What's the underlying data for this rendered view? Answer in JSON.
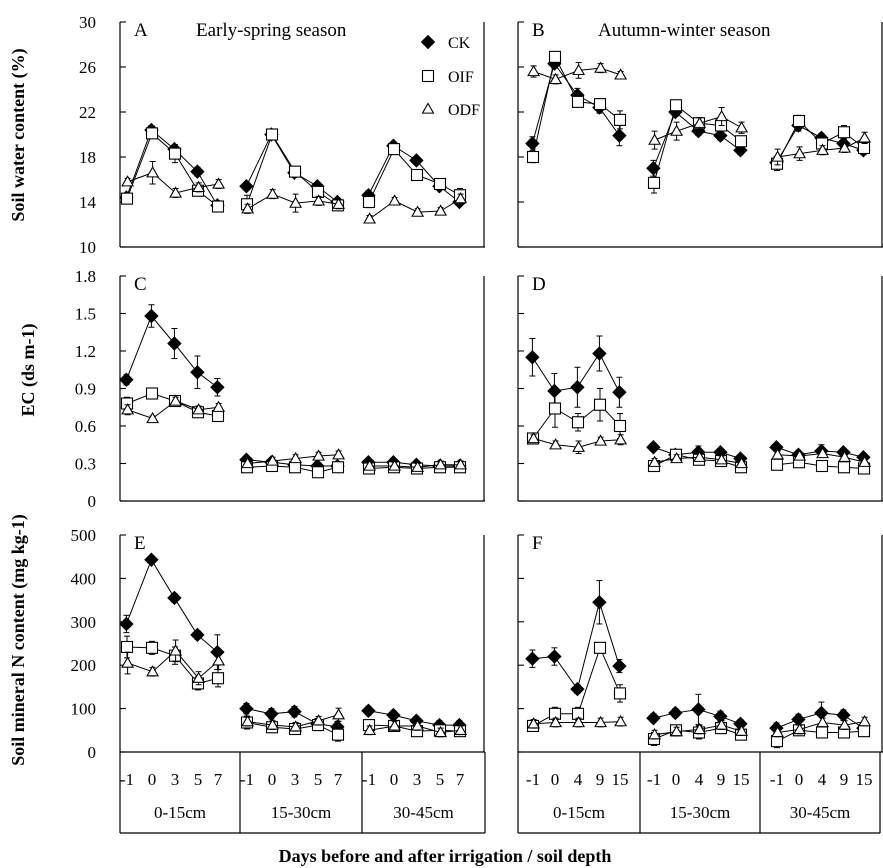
{
  "figure": {
    "xlabel": "Days before and after irrigation / soil depth",
    "left_days": [
      "-1",
      "0",
      "3",
      "5",
      "7"
    ],
    "right_days": [
      "-1",
      "0",
      "4",
      "9",
      "15"
    ],
    "depths": [
      "0-15cm",
      "15-30cm",
      "30-45cm"
    ],
    "row_ylabels": [
      "Soil water content (%)",
      "EC (ds m-1)",
      "Soil mineral N content (mg kg-1)"
    ],
    "legend": [
      "CK",
      "OIF",
      "ODF"
    ],
    "series_markers": {
      "CK": "filled-diamond",
      "OIF": "open-square",
      "ODF": "open-triangle"
    }
  },
  "chart_data": [
    {
      "panel": "A",
      "title": "Early-spring season",
      "type": "line",
      "ylim": [
        10,
        30
      ],
      "yticks": [
        10,
        14,
        18,
        22,
        26,
        30
      ],
      "groups": [
        "0-15cm",
        "15-30cm",
        "30-45cm"
      ],
      "x": [
        "-1",
        "0",
        "3",
        "5",
        "7"
      ],
      "series": [
        {
          "name": "CK",
          "values": [
            [
              14.4,
              20.4,
              18.7,
              16.7,
              13.7
            ],
            [
              15.4,
              20.0,
              16.6,
              15.4,
              14.0
            ],
            [
              14.6,
              19.0,
              17.7,
              15.4,
              14.0
            ]
          ],
          "err": [
            [
              0.4,
              0.4,
              0.3,
              0.4,
              0.4
            ],
            [
              0.3,
              0.3,
              0.3,
              0.3,
              0.3
            ],
            [
              0.4,
              0.3,
              0.3,
              0.3,
              0.3
            ]
          ]
        },
        {
          "name": "OIF",
          "values": [
            [
              14.3,
              20.1,
              18.3,
              15.0,
              13.6
            ],
            [
              13.8,
              20.0,
              16.7,
              14.9,
              13.7
            ],
            [
              14.0,
              18.7,
              16.4,
              15.6,
              14.6
            ]
          ],
          "err": [
            [
              0.3,
              0.4,
              0.8,
              0.4,
              0.4
            ],
            [
              0.8,
              0.3,
              0.4,
              0.4,
              0.4
            ],
            [
              0.5,
              0.3,
              0.4,
              0.4,
              0.6
            ]
          ]
        },
        {
          "name": "ODF",
          "values": [
            [
              15.8,
              16.6,
              14.8,
              15.3,
              15.6
            ],
            [
              13.4,
              14.7,
              13.9,
              14.1,
              13.8
            ],
            [
              12.5,
              14.1,
              13.1,
              13.2,
              14.3
            ]
          ],
          "err": [
            [
              0.3,
              1.0,
              0.4,
              0.4,
              0.4
            ],
            [
              0.4,
              0.4,
              0.8,
              0.4,
              0.4
            ],
            [
              0.3,
              0.3,
              0.3,
              0.3,
              0.4
            ]
          ]
        }
      ]
    },
    {
      "panel": "B",
      "title": "Autumn-winter season",
      "type": "line",
      "ylim": [
        10,
        30
      ],
      "yticks": [
        10,
        14,
        18,
        22,
        26,
        30
      ],
      "groups": [
        "0-15cm",
        "15-30cm",
        "30-45cm"
      ],
      "x": [
        "-1",
        "0",
        "4",
        "9",
        "15"
      ],
      "series": [
        {
          "name": "CK",
          "values": [
            [
              19.2,
              26.3,
              23.5,
              22.4,
              19.9
            ],
            [
              17.0,
              22.0,
              20.3,
              19.9,
              18.6
            ],
            [
              17.5,
              20.8,
              19.7,
              19.2,
              18.6
            ]
          ],
          "err": [
            [
              0.6,
              0.4,
              0.6,
              0.5,
              0.9
            ],
            [
              0.7,
              0.4,
              0.4,
              0.4,
              0.4
            ],
            [
              0.5,
              0.5,
              0.4,
              0.4,
              0.4
            ]
          ]
        },
        {
          "name": "OIF",
          "values": [
            [
              18.0,
              26.9,
              22.9,
              22.7,
              21.3
            ],
            [
              15.7,
              22.6,
              21.0,
              20.8,
              19.4
            ],
            [
              17.4,
              21.2,
              19.2,
              20.2,
              18.8
            ]
          ],
          "err": [
            [
              0.5,
              0.4,
              0.4,
              0.4,
              0.8
            ],
            [
              0.9,
              0.4,
              0.5,
              0.8,
              0.4
            ],
            [
              0.6,
              0.5,
              0.5,
              0.6,
              0.4
            ]
          ]
        },
        {
          "name": "ODF",
          "values": [
            [
              25.6,
              24.9,
              25.7,
              25.9,
              25.3
            ],
            [
              19.5,
              20.3,
              21.0,
              21.6,
              20.6
            ],
            [
              18.0,
              18.3,
              18.6,
              18.8,
              19.7
            ]
          ],
          "err": [
            [
              0.5,
              0.4,
              0.7,
              0.4,
              0.3
            ],
            [
              0.8,
              0.8,
              0.5,
              0.8,
              0.5
            ],
            [
              0.7,
              0.6,
              0.4,
              0.4,
              0.5
            ]
          ]
        }
      ]
    },
    {
      "panel": "C",
      "type": "line",
      "ylim": [
        0,
        1.8
      ],
      "yticks": [
        0,
        0.3,
        0.6,
        0.9,
        1.2,
        1.5,
        1.8
      ],
      "groups": [
        "0-15cm",
        "15-30cm",
        "30-45cm"
      ],
      "x": [
        "-1",
        "0",
        "3",
        "5",
        "7"
      ],
      "series": [
        {
          "name": "CK",
          "values": [
            [
              0.97,
              1.48,
              1.26,
              1.03,
              0.91
            ],
            [
              0.33,
              0.31,
              0.29,
              0.28,
              0.28
            ],
            [
              0.31,
              0.31,
              0.29,
              0.28,
              0.28
            ]
          ],
          "err": [
            [
              0.04,
              0.09,
              0.12,
              0.13,
              0.07
            ],
            [
              0.03,
              0.03,
              0.03,
              0.03,
              0.03
            ],
            [
              0.03,
              0.03,
              0.03,
              0.03,
              0.03
            ]
          ]
        },
        {
          "name": "OIF",
          "values": [
            [
              0.78,
              0.86,
              0.8,
              0.71,
              0.68
            ],
            [
              0.27,
              0.28,
              0.27,
              0.23,
              0.27
            ],
            [
              0.26,
              0.27,
              0.26,
              0.27,
              0.27
            ]
          ],
          "err": [
            [
              0.05,
              0.03,
              0.04,
              0.04,
              0.04
            ],
            [
              0.03,
              0.03,
              0.03,
              0.03,
              0.03
            ],
            [
              0.03,
              0.03,
              0.03,
              0.03,
              0.03
            ]
          ]
        },
        {
          "name": "ODF",
          "values": [
            [
              0.73,
              0.66,
              0.8,
              0.73,
              0.75
            ],
            [
              0.3,
              0.32,
              0.34,
              0.36,
              0.37
            ],
            [
              0.28,
              0.28,
              0.27,
              0.29,
              0.29
            ]
          ],
          "err": [
            [
              0.04,
              0.02,
              0.03,
              0.03,
              0.03
            ],
            [
              0.03,
              0.03,
              0.03,
              0.03,
              0.03
            ],
            [
              0.03,
              0.03,
              0.03,
              0.03,
              0.03
            ]
          ]
        }
      ]
    },
    {
      "panel": "D",
      "type": "line",
      "ylim": [
        0,
        1.8
      ],
      "yticks": [
        0,
        0.3,
        0.6,
        0.9,
        1.2,
        1.5,
        1.8
      ],
      "groups": [
        "0-15cm",
        "15-30cm",
        "30-45cm"
      ],
      "x": [
        "-1",
        "0",
        "4",
        "9",
        "15"
      ],
      "series": [
        {
          "name": "CK",
          "values": [
            [
              1.15,
              0.88,
              0.91,
              1.18,
              0.87
            ],
            [
              0.43,
              0.37,
              0.39,
              0.39,
              0.34
            ],
            [
              0.43,
              0.37,
              0.4,
              0.39,
              0.35
            ]
          ],
          "err": [
            [
              0.15,
              0.14,
              0.16,
              0.14,
              0.12
            ],
            [
              0.03,
              0.03,
              0.05,
              0.03,
              0.03
            ],
            [
              0.03,
              0.03,
              0.05,
              0.03,
              0.03
            ]
          ]
        },
        {
          "name": "OIF",
          "values": [
            [
              0.5,
              0.74,
              0.63,
              0.77,
              0.6
            ],
            [
              0.28,
              0.37,
              0.33,
              0.32,
              0.27
            ],
            [
              0.29,
              0.31,
              0.28,
              0.27,
              0.26
            ]
          ],
          "err": [
            [
              0.04,
              0.15,
              0.07,
              0.13,
              0.1
            ],
            [
              0.03,
              0.03,
              0.03,
              0.03,
              0.03
            ],
            [
              0.03,
              0.03,
              0.03,
              0.03,
              0.03
            ]
          ]
        },
        {
          "name": "ODF",
          "values": [
            [
              0.5,
              0.45,
              0.43,
              0.48,
              0.49
            ],
            [
              0.31,
              0.34,
              0.35,
              0.33,
              0.3
            ],
            [
              0.37,
              0.36,
              0.38,
              0.35,
              0.31
            ]
          ],
          "err": [
            [
              0.03,
              0.03,
              0.05,
              0.03,
              0.04
            ],
            [
              0.03,
              0.03,
              0.03,
              0.03,
              0.03
            ],
            [
              0.03,
              0.03,
              0.03,
              0.03,
              0.03
            ]
          ]
        }
      ]
    },
    {
      "panel": "E",
      "type": "line",
      "ylim": [
        0,
        500
      ],
      "yticks": [
        0,
        100,
        200,
        300,
        400,
        500
      ],
      "groups": [
        "0-15cm",
        "15-30cm",
        "30-45cm"
      ],
      "x": [
        "-1",
        "0",
        "3",
        "5",
        "7"
      ],
      "series": [
        {
          "name": "CK",
          "values": [
            [
              295,
              443,
              355,
              270,
              230
            ],
            [
              100,
              88,
              93,
              65,
              58
            ],
            [
              95,
              85,
              72,
              62,
              62
            ]
          ],
          "err": [
            [
              20,
              8,
              10,
              10,
              40
            ],
            [
              12,
              12,
              12,
              12,
              12
            ],
            [
              10,
              10,
              10,
              10,
              10
            ]
          ]
        },
        {
          "name": "OIF",
          "values": [
            [
              242,
              240,
              222,
              158,
              170
            ],
            [
              68,
              57,
              53,
              62,
              40
            ],
            [
              62,
              60,
              48,
              50,
              48
            ]
          ],
          "err": [
            [
              25,
              15,
              20,
              15,
              20
            ],
            [
              15,
              10,
              10,
              10,
              15
            ],
            [
              10,
              10,
              10,
              10,
              10
            ]
          ]
        },
        {
          "name": "ODF",
          "values": [
            [
              205,
              185,
              233,
              170,
              210
            ],
            [
              70,
              62,
              58,
              72,
              86
            ],
            [
              50,
              60,
              60,
              45,
              50
            ]
          ],
          "err": [
            [
              25,
              10,
              25,
              15,
              20
            ],
            [
              10,
              10,
              10,
              10,
              15
            ],
            [
              10,
              10,
              10,
              10,
              10
            ]
          ]
        }
      ]
    },
    {
      "panel": "F",
      "type": "line",
      "ylim": [
        0,
        500
      ],
      "yticks": [
        0,
        100,
        200,
        300,
        400,
        500
      ],
      "groups": [
        "0-15cm",
        "15-30cm",
        "30-45cm"
      ],
      "x": [
        "-1",
        "0",
        "4",
        "9",
        "15"
      ],
      "series": [
        {
          "name": "CK",
          "values": [
            [
              215,
              220,
              145,
              345,
              198
            ],
            [
              78,
              90,
              98,
              82,
              65
            ],
            [
              55,
              75,
              90,
              85,
              55
            ]
          ],
          "err": [
            [
              20,
              20,
              10,
              50,
              15
            ],
            [
              10,
              10,
              35,
              12,
              10
            ],
            [
              12,
              12,
              25,
              12,
              10
            ]
          ]
        },
        {
          "name": "OIF",
          "values": [
            [
              60,
              88,
              88,
              240,
              135
            ],
            [
              30,
              50,
              45,
              55,
              40
            ],
            [
              25,
              50,
              45,
              45,
              48
            ]
          ],
          "err": [
            [
              10,
              15,
              15,
              10,
              20
            ],
            [
              15,
              10,
              15,
              10,
              10
            ],
            [
              15,
              10,
              10,
              10,
              10
            ]
          ]
        },
        {
          "name": "ODF",
          "values": [
            [
              65,
              68,
              68,
              68,
              70
            ],
            [
              40,
              47,
              52,
              62,
              48
            ],
            [
              45,
              52,
              68,
              62,
              70
            ]
          ],
          "err": [
            [
              10,
              10,
              10,
              10,
              10
            ],
            [
              10,
              10,
              10,
              10,
              10
            ],
            [
              10,
              10,
              10,
              10,
              10
            ]
          ]
        }
      ]
    }
  ]
}
